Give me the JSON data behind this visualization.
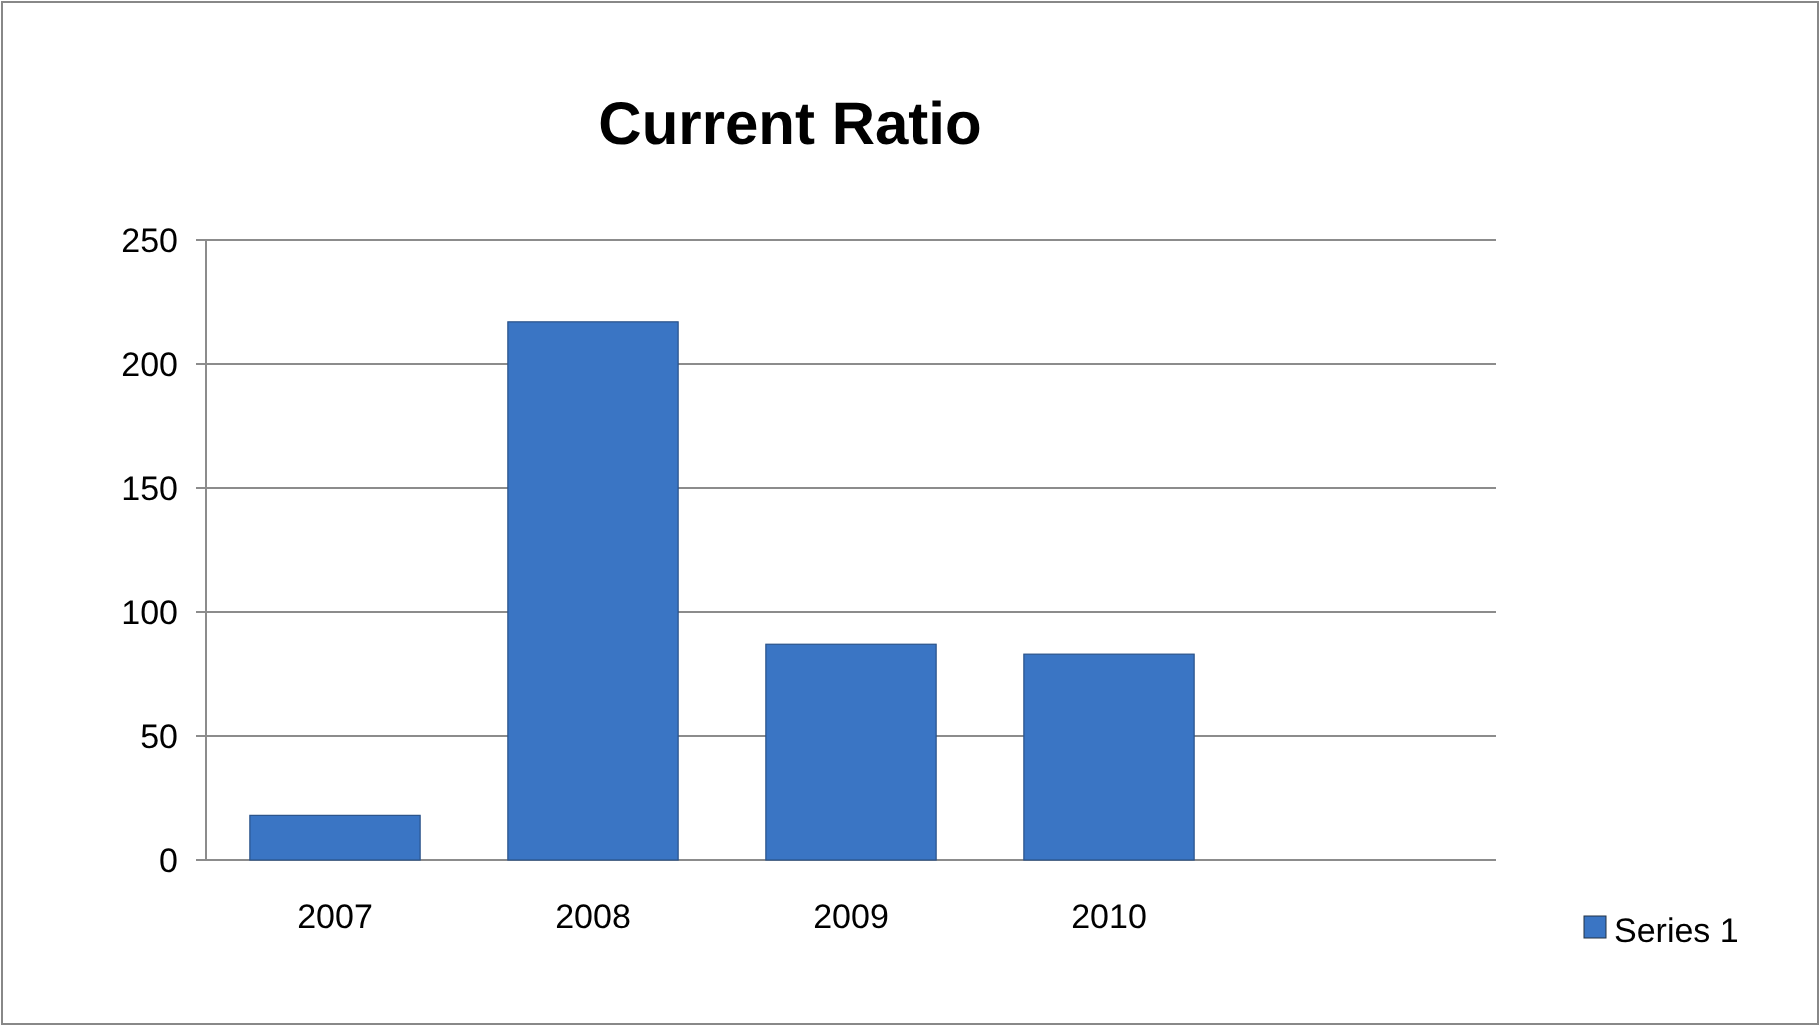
{
  "chart_data": {
    "type": "bar",
    "title": "Current Ratio",
    "categories": [
      "2007",
      "2008",
      "2009",
      "2010",
      null
    ],
    "series": [
      {
        "name": "Series 1",
        "color": "#3a75c4",
        "values": [
          18,
          217,
          87,
          83,
          null
        ]
      }
    ],
    "ylim": [
      0,
      250
    ],
    "yticks": [
      0,
      50,
      100,
      150,
      200,
      250
    ],
    "grid": "y",
    "legend": "right"
  }
}
